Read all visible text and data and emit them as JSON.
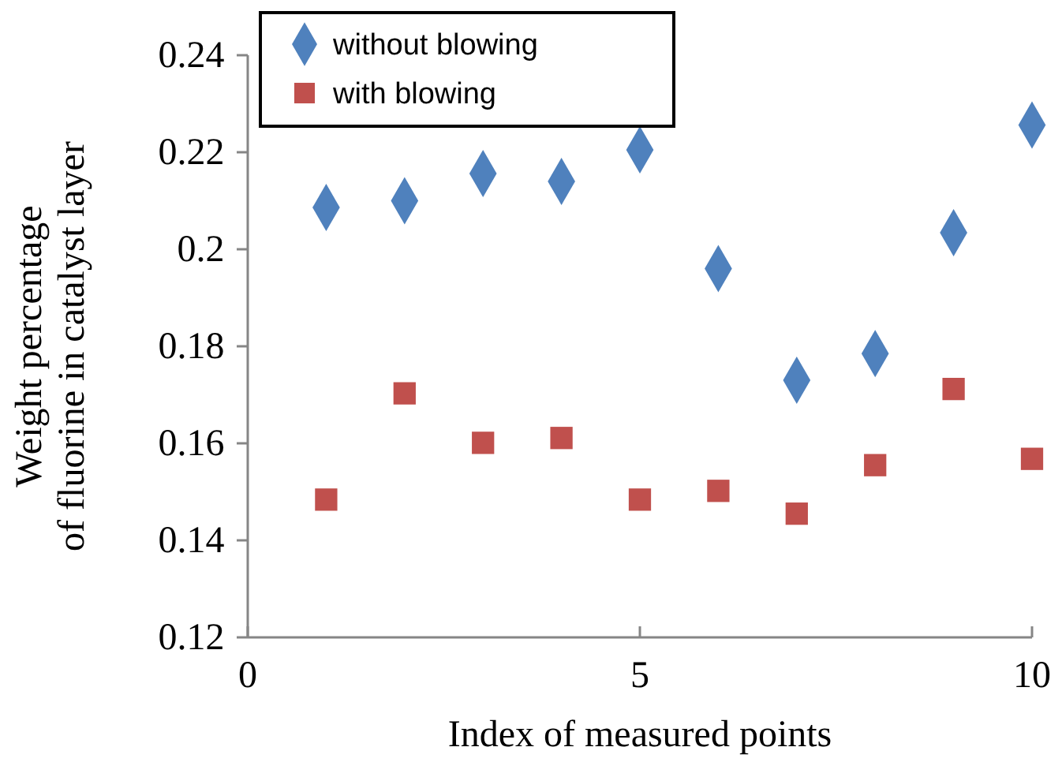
{
  "chart_data": {
    "type": "scatter",
    "xlabel": "Index of measured points",
    "ylabel": "Weight percentage\nof fluorine in catalyst layer",
    "x": [
      1,
      2,
      3,
      4,
      5,
      6,
      7,
      8,
      9,
      10
    ],
    "xlim": [
      0,
      10
    ],
    "xticks": [
      0,
      5,
      10
    ],
    "ylim": [
      0.12,
      0.24
    ],
    "yticks": [
      0.12,
      0.14,
      0.16,
      0.18,
      0.2,
      0.22,
      0.24
    ],
    "grid": false,
    "legend": "top left",
    "series": [
      {
        "name": "without blowing",
        "color": "#4f81bd",
        "marker": "diamond",
        "values": [
          0.2086,
          0.21,
          0.2156,
          0.214,
          0.2205,
          0.196,
          0.173,
          0.1785,
          0.2034,
          0.2256
        ]
      },
      {
        "name": "with blowing",
        "color": "#c0504d",
        "marker": "square",
        "values": [
          0.1484,
          0.1703,
          0.1601,
          0.1611,
          0.1484,
          0.1502,
          0.1455,
          0.1555,
          0.1712,
          0.1568
        ]
      }
    ]
  }
}
